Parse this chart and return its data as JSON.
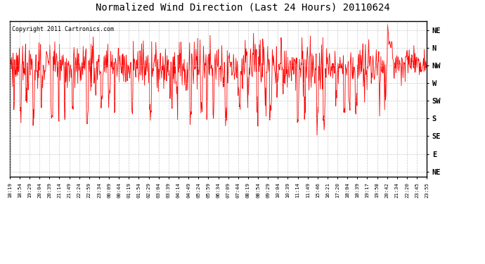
{
  "title": "Normalized Wind Direction (Last 24 Hours) 20110624",
  "copyright_text": "Copyright 2011 Cartronics.com",
  "background_color": "#ffffff",
  "plot_bg_color": "#ffffff",
  "line_color": "#ff0000",
  "line_width": 0.6,
  "ytick_labels": [
    "NE",
    "N",
    "NW",
    "W",
    "SW",
    "S",
    "SE",
    "E",
    "NE"
  ],
  "ytick_values": [
    8,
    7,
    6,
    5,
    4,
    3,
    2,
    1,
    0
  ],
  "ylim": [
    -0.3,
    8.5
  ],
  "xtick_labels": [
    "18:19",
    "18:54",
    "19:29",
    "20:04",
    "20:39",
    "21:14",
    "21:49",
    "22:24",
    "22:59",
    "23:34",
    "00:09",
    "00:44",
    "01:19",
    "01:54",
    "02:29",
    "03:04",
    "03:39",
    "04:14",
    "04:49",
    "05:24",
    "05:59",
    "06:34",
    "07:09",
    "07:44",
    "08:19",
    "08:54",
    "09:29",
    "10:04",
    "10:39",
    "11:14",
    "11:49",
    "15:46",
    "16:21",
    "17:20",
    "18:04",
    "18:39",
    "19:17",
    "19:58",
    "20:42",
    "21:34",
    "22:20",
    "23:45",
    "23:55"
  ],
  "grid_color": "#bbbbbb",
  "grid_style": "--",
  "grid_alpha": 0.8,
  "title_fontsize": 10,
  "copyright_fontsize": 6,
  "ytick_fontsize": 7.5,
  "xtick_fontsize": 5.2
}
